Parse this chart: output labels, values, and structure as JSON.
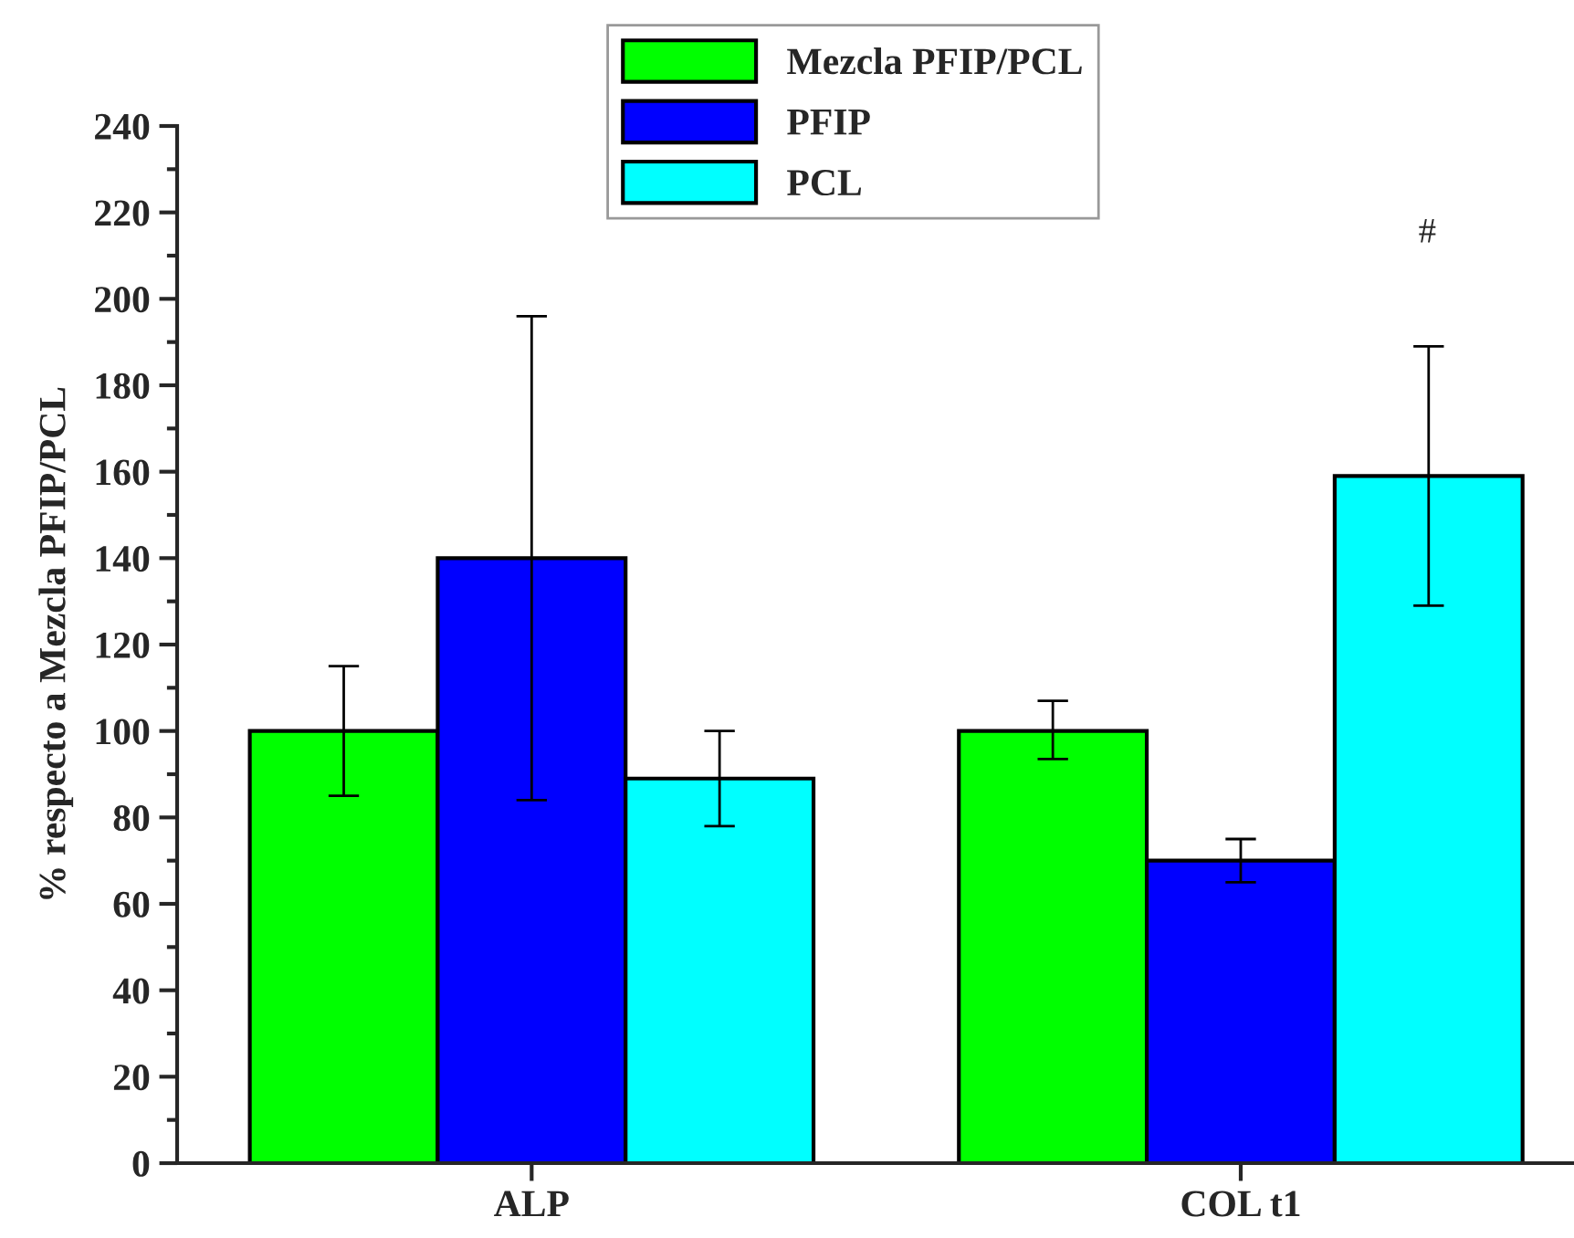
{
  "chart_data": {
    "type": "bar",
    "ylabel": "% respecto a Mezcla PFIP/PCL",
    "categories": [
      "ALP",
      "COL t1"
    ],
    "series": [
      {
        "name": "Mezcla PFIP/PCL",
        "color": "#00ff00",
        "values": [
          100,
          100
        ],
        "errors": [
          [
            85,
            115
          ],
          [
            93.5,
            107
          ]
        ]
      },
      {
        "name": "PFIP",
        "color": "#0000ff",
        "values": [
          140,
          70
        ],
        "errors": [
          [
            84,
            196
          ],
          [
            65,
            75
          ]
        ]
      },
      {
        "name": "PCL",
        "color": "#00ffff",
        "values": [
          89,
          159
        ],
        "errors": [
          [
            78,
            100
          ],
          [
            129,
            189
          ]
        ]
      }
    ],
    "ylim": [
      0,
      240
    ],
    "yticks": [
      0,
      20,
      40,
      60,
      80,
      100,
      120,
      140,
      160,
      180,
      200,
      220,
      240
    ],
    "annotations": [
      "#"
    ],
    "grid": false,
    "legend": "top"
  }
}
